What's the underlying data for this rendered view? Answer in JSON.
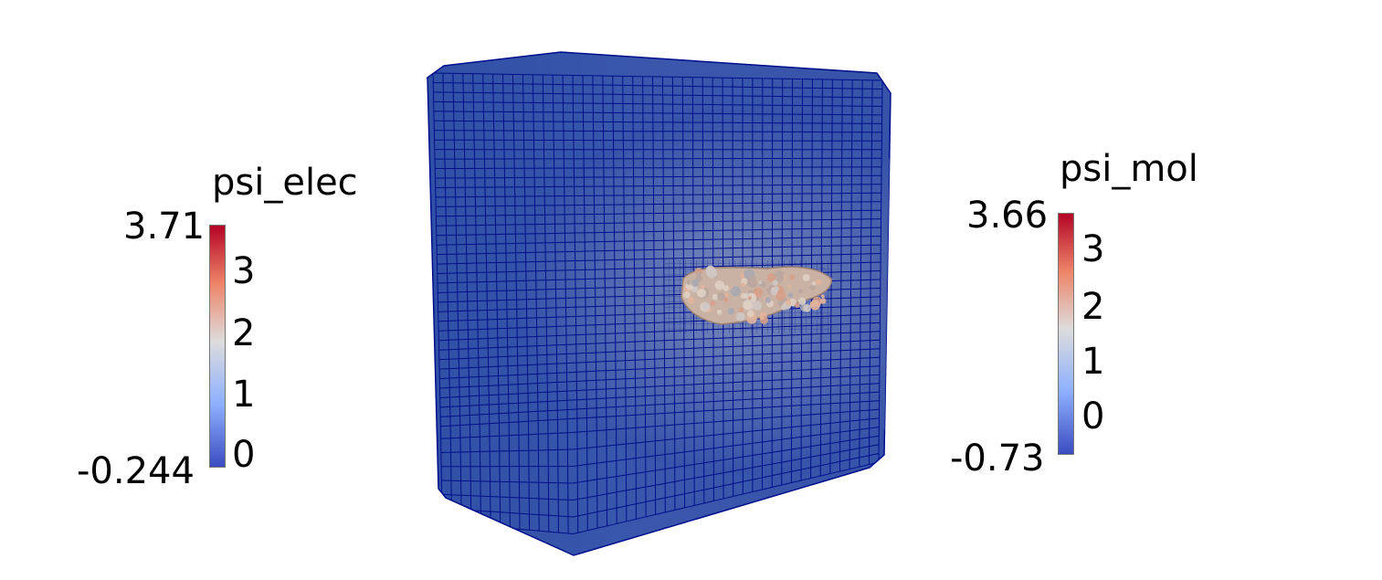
{
  "colorbars": {
    "left": {
      "title": "psi_elec",
      "max": "3.71",
      "min": "-0.244",
      "ticks": [
        "3",
        "2",
        "1",
        "0"
      ]
    },
    "right": {
      "title": "psi_mol",
      "max": "3.66",
      "min": "-0.73",
      "ticks": [
        "3",
        "2",
        "1",
        "0"
      ]
    }
  },
  "colors": {
    "mesh_face": "#3452a6",
    "mesh_lines": "#000f8c",
    "cmap_high": "#b40426",
    "cmap_mid": "#dddcdc",
    "cmap_low": "#3b4cc0"
  }
}
